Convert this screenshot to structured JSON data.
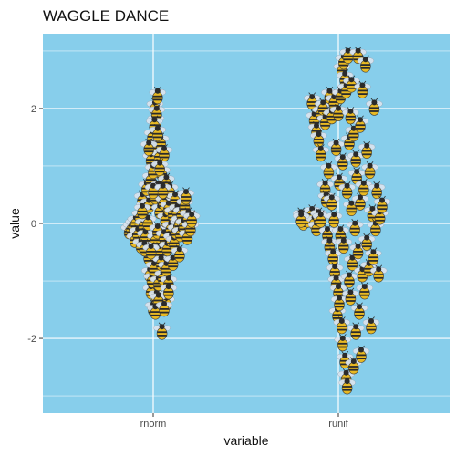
{
  "chart_data": {
    "type": "scatter",
    "title": "WAGGLE DANCE",
    "xlabel": "variable",
    "ylabel": "value",
    "categories": [
      "rnorm",
      "runif"
    ],
    "ylim": [
      -3.3,
      3.3
    ],
    "y_ticks": [
      2,
      0,
      -2
    ],
    "y_tick_labels": [
      "2",
      "0",
      "-2"
    ],
    "grid": true,
    "marker": "bee-icon",
    "colors": {
      "panel": "#87ceeb",
      "grid": "#ffffff",
      "bee_body": "#e8b923",
      "bee_stripe": "#2b2b2b",
      "bee_wing": "#d9e4ef"
    },
    "series": [
      {
        "category": "rnorm",
        "points": [
          [
            -0.55,
            -0.15
          ],
          [
            -0.5,
            -0.1
          ],
          [
            -0.45,
            -0.05
          ],
          [
            -0.4,
            0.0
          ],
          [
            -0.42,
            -0.3
          ],
          [
            -0.35,
            -0.2
          ],
          [
            -0.3,
            0.1
          ],
          [
            -0.28,
            -0.4
          ],
          [
            -0.25,
            0.4
          ],
          [
            -0.22,
            -0.05
          ],
          [
            -0.2,
            0.25
          ],
          [
            -0.18,
            -0.25
          ],
          [
            -0.15,
            0.6
          ],
          [
            -0.12,
            0.0
          ],
          [
            -0.1,
            -0.6
          ],
          [
            -0.1,
            0.3
          ],
          [
            -0.08,
            -0.9
          ],
          [
            -0.06,
            0.75
          ],
          [
            -0.05,
            -1.2
          ],
          [
            -0.05,
            1.1
          ],
          [
            -0.03,
            -1.0
          ],
          [
            -0.02,
            1.5
          ],
          [
            0.0,
            -1.5
          ],
          [
            0.0,
            0.9
          ],
          [
            0.02,
            1.3
          ],
          [
            0.02,
            -0.8
          ],
          [
            0.04,
            2.0
          ],
          [
            0.05,
            -0.3
          ],
          [
            0.05,
            0.45
          ],
          [
            0.06,
            1.75
          ],
          [
            0.08,
            -1.3
          ],
          [
            0.08,
            1.9
          ],
          [
            0.1,
            -0.15
          ],
          [
            0.1,
            2.2
          ],
          [
            0.12,
            0.6
          ],
          [
            0.12,
            -1.05
          ],
          [
            0.14,
            1.15
          ],
          [
            0.15,
            -0.5
          ],
          [
            0.15,
            0.2
          ],
          [
            0.17,
            1.4
          ],
          [
            0.18,
            -0.7
          ],
          [
            0.2,
            0.85
          ],
          [
            0.2,
            -1.9
          ],
          [
            0.22,
            -0.95
          ],
          [
            0.24,
            0.35
          ],
          [
            0.25,
            1.2
          ],
          [
            0.25,
            -0.25
          ],
          [
            0.28,
            0.05
          ],
          [
            0.3,
            -1.4
          ],
          [
            0.3,
            0.7
          ],
          [
            0.32,
            -0.45
          ],
          [
            0.35,
            0.25
          ],
          [
            0.35,
            -1.05
          ],
          [
            0.38,
            0.55
          ],
          [
            0.4,
            -0.1
          ],
          [
            0.42,
            -0.3
          ],
          [
            0.45,
            0.15
          ],
          [
            0.48,
            -0.35
          ],
          [
            0.5,
            0.4
          ],
          [
            0.52,
            -0.15
          ],
          [
            0.55,
            0.2
          ],
          [
            0.58,
            -0.05
          ],
          [
            0.6,
            0.0
          ],
          [
            0.62,
            -0.2
          ],
          [
            0.65,
            0.15
          ],
          [
            0.7,
            -0.05
          ],
          [
            0.72,
            0.3
          ],
          [
            0.75,
            0.45
          ],
          [
            0.78,
            -0.25
          ],
          [
            0.8,
            0.1
          ],
          [
            0.85,
            -0.1
          ],
          [
            0.88,
            0.05
          ],
          [
            -0.1,
            1.3
          ],
          [
            0.0,
            0.55
          ],
          [
            0.03,
            1.7
          ],
          [
            0.1,
            1.55
          ],
          [
            0.15,
            0.95
          ],
          [
            0.22,
            0.55
          ],
          [
            -0.2,
            -0.45
          ],
          [
            -0.05,
            -0.5
          ],
          [
            0.3,
            -0.8
          ],
          [
            0.45,
            -0.7
          ],
          [
            0.6,
            -0.55
          ],
          [
            -0.25,
            0.2
          ],
          [
            0.12,
            -1.35
          ],
          [
            0.05,
            -1.55
          ],
          [
            0.35,
            -1.2
          ],
          [
            0.25,
            -1.5
          ]
        ]
      },
      {
        "category": "runif",
        "points": [
          [
            -0.85,
            0.1
          ],
          [
            -0.8,
            0.0
          ],
          [
            -0.7,
            0.05
          ],
          [
            -0.6,
            0.15
          ],
          [
            -0.55,
            0.0
          ],
          [
            -0.5,
            -0.1
          ],
          [
            -0.45,
            0.1
          ],
          [
            -0.4,
            0.05
          ],
          [
            -0.6,
            2.1
          ],
          [
            -0.55,
            1.8
          ],
          [
            -0.5,
            1.6
          ],
          [
            -0.45,
            1.45
          ],
          [
            -0.4,
            1.2
          ],
          [
            -0.4,
            1.9
          ],
          [
            -0.35,
            2.0
          ],
          [
            -0.3,
            1.75
          ],
          [
            -0.3,
            0.6
          ],
          [
            -0.28,
            0.4
          ],
          [
            -0.25,
            -0.2
          ],
          [
            -0.22,
            0.9
          ],
          [
            -0.2,
            -0.4
          ],
          [
            -0.2,
            2.2
          ],
          [
            -0.15,
            1.85
          ],
          [
            -0.15,
            0.35
          ],
          [
            -0.12,
            -0.6
          ],
          [
            -0.1,
            2.1
          ],
          [
            -0.1,
            0.05
          ],
          [
            -0.08,
            -0.85
          ],
          [
            -0.05,
            -1.05
          ],
          [
            -0.05,
            1.3
          ],
          [
            -0.02,
            -1.6
          ],
          [
            0.0,
            -1.2
          ],
          [
            0.0,
            1.9
          ],
          [
            0.02,
            -1.4
          ],
          [
            0.02,
            0.7
          ],
          [
            0.05,
            2.2
          ],
          [
            0.05,
            -0.2
          ],
          [
            0.08,
            -1.8
          ],
          [
            0.08,
            2.65
          ],
          [
            0.1,
            -2.1
          ],
          [
            0.1,
            1.05
          ],
          [
            0.12,
            2.8
          ],
          [
            0.12,
            -0.4
          ],
          [
            0.15,
            -2.4
          ],
          [
            0.15,
            2.5
          ],
          [
            0.18,
            -2.7
          ],
          [
            0.18,
            2.3
          ],
          [
            0.2,
            0.55
          ],
          [
            0.2,
            -2.85
          ],
          [
            0.22,
            2.9
          ],
          [
            0.25,
            -1.0
          ],
          [
            0.25,
            1.4
          ],
          [
            0.28,
            -1.3
          ],
          [
            0.3,
            2.4
          ],
          [
            0.3,
            0.25
          ],
          [
            0.32,
            -0.7
          ],
          [
            0.35,
            1.55
          ],
          [
            0.35,
            -2.5
          ],
          [
            0.38,
            -0.1
          ],
          [
            0.4,
            1.1
          ],
          [
            0.4,
            -1.9
          ],
          [
            0.42,
            0.8
          ],
          [
            0.45,
            2.9
          ],
          [
            0.45,
            -0.5
          ],
          [
            0.48,
            -1.55
          ],
          [
            0.5,
            1.7
          ],
          [
            0.5,
            0.35
          ],
          [
            0.52,
            -2.3
          ],
          [
            0.55,
            -0.9
          ],
          [
            0.55,
            2.3
          ],
          [
            0.58,
            0.6
          ],
          [
            0.6,
            -1.2
          ],
          [
            0.62,
            2.75
          ],
          [
            0.65,
            1.25
          ],
          [
            0.65,
            -0.35
          ],
          [
            0.7,
            -0.8
          ],
          [
            0.72,
            0.9
          ],
          [
            0.75,
            -1.8
          ],
          [
            0.78,
            0.15
          ],
          [
            0.8,
            -0.6
          ],
          [
            0.82,
            2.0
          ],
          [
            0.85,
            -0.1
          ],
          [
            0.88,
            0.55
          ],
          [
            0.92,
            -0.9
          ],
          [
            0.95,
            0.1
          ],
          [
            1.0,
            0.3
          ],
          [
            -0.85,
            0.05
          ],
          [
            0.28,
            1.85
          ]
        ]
      }
    ]
  }
}
